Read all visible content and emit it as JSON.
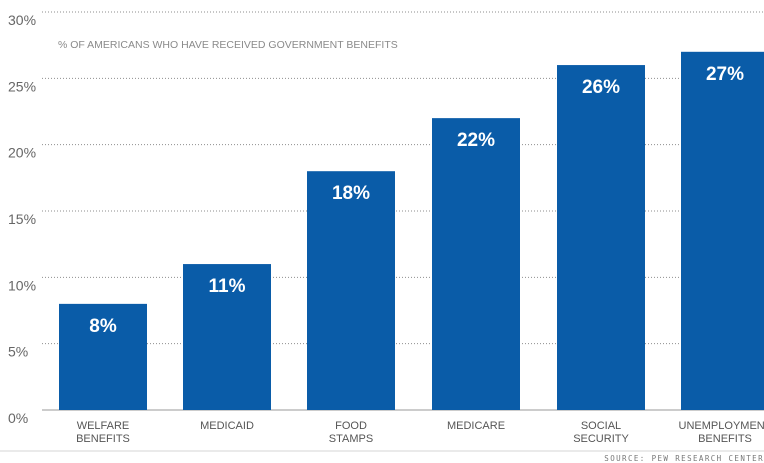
{
  "chart_data": {
    "type": "bar",
    "title": "% OF AMERICANS WHO HAVE RECEIVED GOVERNMENT BENEFITS",
    "categories": [
      [
        "WELFARE",
        "BENEFITS"
      ],
      [
        "MEDICAID"
      ],
      [
        "FOOD",
        "STAMPS"
      ],
      [
        "MEDICARE"
      ],
      [
        "SOCIAL",
        "SECURITY"
      ],
      [
        "UNEMPLOYMENT",
        "BENEFITS"
      ]
    ],
    "values": [
      8,
      11,
      18,
      22,
      26,
      27
    ],
    "data_labels": [
      "8%",
      "11%",
      "18%",
      "22%",
      "26%",
      "27%"
    ],
    "yticks": [
      0,
      5,
      10,
      15,
      20,
      25,
      30
    ],
    "ytick_labels": [
      "0%",
      "5%",
      "10%",
      "15%",
      "20%",
      "25%",
      "30%"
    ],
    "ylim": [
      0,
      30
    ],
    "grid": "horizontal dotted",
    "bar_color": "#0a5ca8",
    "source": "SOURCE: PEW RESEARCH CENTER"
  }
}
